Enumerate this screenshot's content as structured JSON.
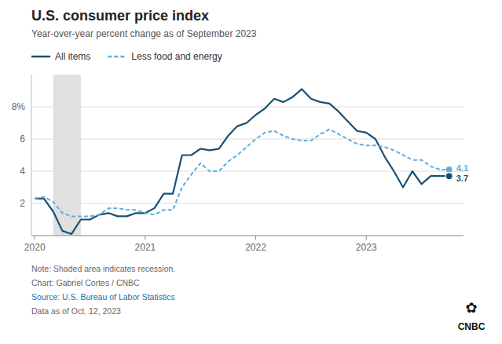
{
  "chart_data": {
    "type": "line",
    "title": "U.S. consumer price index",
    "subtitle": "Year-over-year percent change as of September 2023",
    "x": [
      2020,
      2020.083,
      2020.167,
      2020.25,
      2020.333,
      2020.417,
      2020.5,
      2020.583,
      2020.667,
      2020.75,
      2020.833,
      2020.917,
      2021,
      2021.083,
      2021.167,
      2021.25,
      2021.333,
      2021.417,
      2021.5,
      2021.583,
      2021.667,
      2021.75,
      2021.833,
      2021.917,
      2022,
      2022.083,
      2022.167,
      2022.25,
      2022.333,
      2022.417,
      2022.5,
      2022.583,
      2022.667,
      2022.75,
      2022.833,
      2022.917,
      2023,
      2023.083,
      2023.167,
      2023.25,
      2023.333,
      2023.417,
      2023.5,
      2023.583,
      2023.667,
      2023.75
    ],
    "series": [
      {
        "name": "All items",
        "color": "#1b4f72",
        "line_style": "solid",
        "values": [
          2.3,
          2.3,
          1.5,
          0.3,
          0.1,
          1.0,
          1.0,
          1.3,
          1.4,
          1.2,
          1.2,
          1.4,
          1.4,
          1.7,
          2.6,
          2.6,
          5.0,
          5.0,
          5.4,
          5.3,
          5.4,
          6.2,
          6.8,
          7.0,
          7.5,
          7.9,
          8.5,
          8.3,
          8.6,
          9.1,
          8.5,
          8.3,
          8.2,
          7.7,
          7.1,
          6.5,
          6.4,
          6.0,
          4.9,
          4.0,
          3.0,
          4.0,
          3.2,
          3.7,
          3.7,
          3.7
        ]
      },
      {
        "name": "Less food and energy",
        "color": "#5dade2",
        "line_style": "dashed",
        "values": [
          2.3,
          2.4,
          2.1,
          1.4,
          1.2,
          1.2,
          1.2,
          1.3,
          1.7,
          1.7,
          1.6,
          1.6,
          1.4,
          1.3,
          1.6,
          1.6,
          3.0,
          3.8,
          4.5,
          4.0,
          4.0,
          4.6,
          5.0,
          5.5,
          6.0,
          6.4,
          6.5,
          6.2,
          6.0,
          5.9,
          5.9,
          6.3,
          6.6,
          6.3,
          6.0,
          5.7,
          5.6,
          5.6,
          5.5,
          5.3,
          5.0,
          4.7,
          4.7,
          4.3,
          4.1,
          4.1
        ]
      }
    ],
    "xlim": [
      2019.97,
      2023.88
    ],
    "xticks": [
      2020,
      2021,
      2022,
      2023
    ],
    "ylim": [
      0,
      10
    ],
    "yticks": [
      2,
      4,
      6,
      {
        "value": 8,
        "label": "8%"
      }
    ],
    "grid": true,
    "legend": "top",
    "recession": {
      "start": 2020.167,
      "end": 2020.417
    },
    "annotations": [
      {
        "x": 2023.75,
        "value": 4.1,
        "label": "4.1",
        "color": "#5dade2"
      },
      {
        "x": 2023.75,
        "value": 3.7,
        "label": "3.7",
        "color": "#1b4f72"
      }
    ],
    "notes": [
      {
        "text": "Note: Shaded area indicates recession."
      },
      {
        "text": "Chart: Gabriel Cortes / CNBC"
      },
      {
        "text": "Source: U.S. Bureau of Labor Statistics",
        "color": "#1a6fa8"
      },
      {
        "text": "Data as of Oct. 12, 2023"
      }
    ],
    "logo": {
      "symbol": "✿",
      "text": "CNBC"
    }
  }
}
